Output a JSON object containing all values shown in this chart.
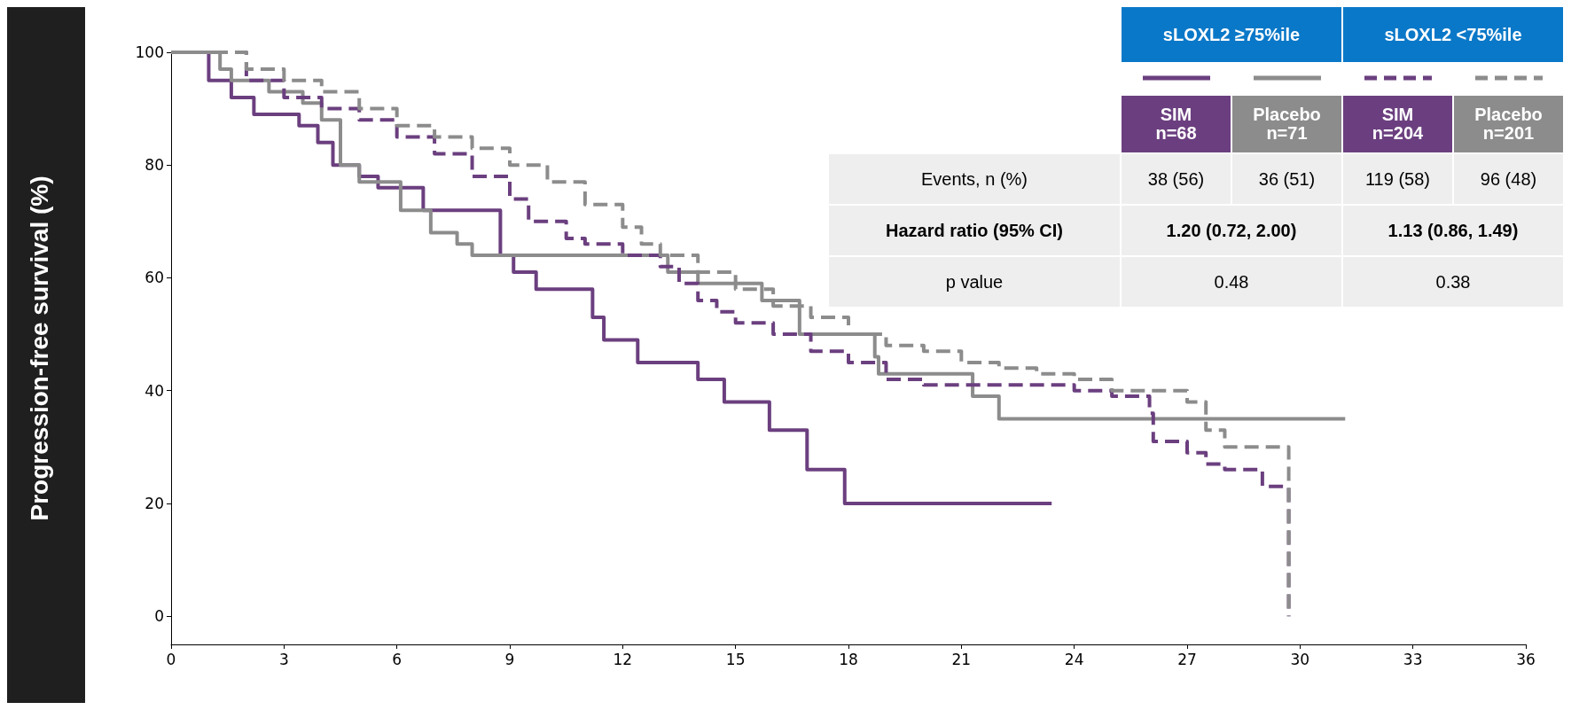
{
  "chart_data": {
    "type": "step",
    "ylabel": "Progression-free survival (%)",
    "xlim": [
      0,
      36
    ],
    "xticks": [
      0,
      3,
      6,
      9,
      12,
      15,
      18,
      21,
      24,
      27,
      30,
      33,
      36
    ],
    "ylim": [
      -5,
      100
    ],
    "yticks": [
      0,
      20,
      40,
      60,
      80,
      100
    ],
    "grid": false,
    "legend": "top right",
    "legend_title": [
      "sLOXL2 ≥75%ile",
      "sLOXL2 <75%ile"
    ],
    "series": [
      {
        "name": "SIM n=68",
        "color": "#6b3f7f",
        "line_style": "solid",
        "x": [
          0,
          1,
          1.6,
          2.2,
          3.4,
          3.9,
          4.3,
          5.0,
          5.5,
          6.7,
          8.75,
          9.1,
          9.7,
          11.2,
          11.5,
          12.4,
          14.0,
          14.7,
          15.9,
          16.9,
          17.9,
          23.4
        ],
        "values": [
          100,
          95,
          92,
          89,
          87,
          84,
          80,
          78,
          76,
          72,
          64,
          61,
          58,
          53,
          49,
          45,
          42,
          38,
          33,
          26,
          20,
          20
        ]
      },
      {
        "name": "Placebo n=71",
        "color": "#8c8c8c",
        "line_style": "solid",
        "x": [
          0,
          1.3,
          1.6,
          2.6,
          3.5,
          4,
          4.5,
          5,
          6.1,
          6.9,
          7.6,
          8,
          13.2,
          14,
          15.7,
          16.7,
          18.7,
          18.8,
          21.3,
          22,
          31.2
        ],
        "values": [
          100,
          97,
          95,
          93,
          91,
          88,
          80,
          77,
          72,
          68,
          66,
          64,
          61,
          59,
          56,
          50,
          46,
          43,
          39,
          35,
          35
        ]
      },
      {
        "name": "SIM n=204",
        "color": "#6b3f7f",
        "line_style": "dashed",
        "x": [
          0,
          2,
          3,
          4,
          5,
          6,
          7,
          8,
          9,
          9.5,
          10.5,
          11,
          12,
          13,
          13.5,
          14,
          14.5,
          15,
          16,
          17,
          18,
          19,
          20,
          24,
          25,
          26,
          26.1,
          27,
          27.5,
          28,
          29,
          29.7,
          29.7
        ],
        "values": [
          100,
          95,
          92,
          90,
          88,
          85,
          82,
          78,
          74,
          70,
          67,
          66,
          64,
          62,
          59,
          56,
          54,
          52,
          50,
          47,
          45,
          42,
          41,
          40,
          39,
          36,
          31,
          29,
          27,
          26,
          23,
          22,
          0
        ]
      },
      {
        "name": "Placebo n=201",
        "color": "#8c8c8c",
        "line_style": "dashed",
        "x": [
          0,
          2,
          3,
          4,
          5,
          6,
          7,
          8,
          9,
          10,
          11,
          12,
          12.5,
          13,
          14,
          15,
          16,
          17,
          18,
          19,
          20,
          21,
          22,
          23,
          24,
          25,
          27,
          27.5,
          28,
          29.7,
          29.7
        ],
        "values": [
          100,
          97,
          95,
          93,
          90,
          87,
          85,
          83,
          80,
          77,
          73,
          69,
          66,
          64,
          61,
          58,
          55,
          53,
          50,
          48,
          47,
          45,
          44,
          43,
          42,
          40,
          38,
          33,
          30,
          29,
          0
        ]
      }
    ],
    "annotations": [
      "Events, n (%)",
      "38 (56)",
      "36 (51)",
      "119 (58)",
      "96 (48)",
      "Hazard ratio (95% CI)",
      "1.20 (0.72, 2.00)",
      "1.13 (0.86, 1.49)",
      "p value",
      "0.48",
      "0.38"
    ]
  }
}
